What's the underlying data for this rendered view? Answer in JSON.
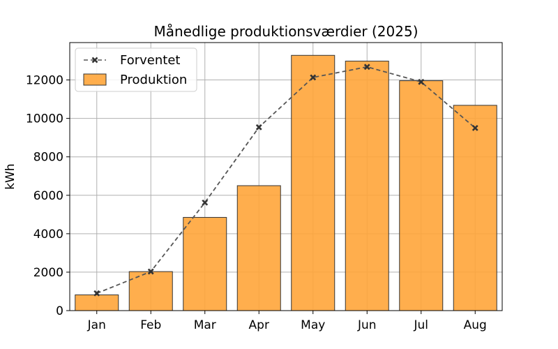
{
  "chart_data": {
    "type": "bar",
    "title": "Månedlige produktionsværdier (2025)",
    "xlabel": "",
    "ylabel": "kWh",
    "categories": [
      "Jan",
      "Feb",
      "Mar",
      "Apr",
      "May",
      "Jun",
      "Jul",
      "Aug"
    ],
    "series": [
      {
        "name": "Produktion",
        "type": "bar",
        "color": "#ffa53a",
        "values": [
          820,
          2030,
          4850,
          6500,
          13280,
          12980,
          11960,
          10680
        ]
      },
      {
        "name": "Forventet",
        "type": "line",
        "style": "dashed",
        "marker": "x",
        "color": "#555555",
        "values": [
          900,
          2030,
          5620,
          9540,
          12130,
          12680,
          11900,
          9500
        ]
      }
    ],
    "yticks": [
      0,
      2000,
      4000,
      6000,
      8000,
      10000,
      12000
    ],
    "ylim": [
      0,
      13944
    ],
    "grid": true,
    "legend_position": "top-left"
  }
}
